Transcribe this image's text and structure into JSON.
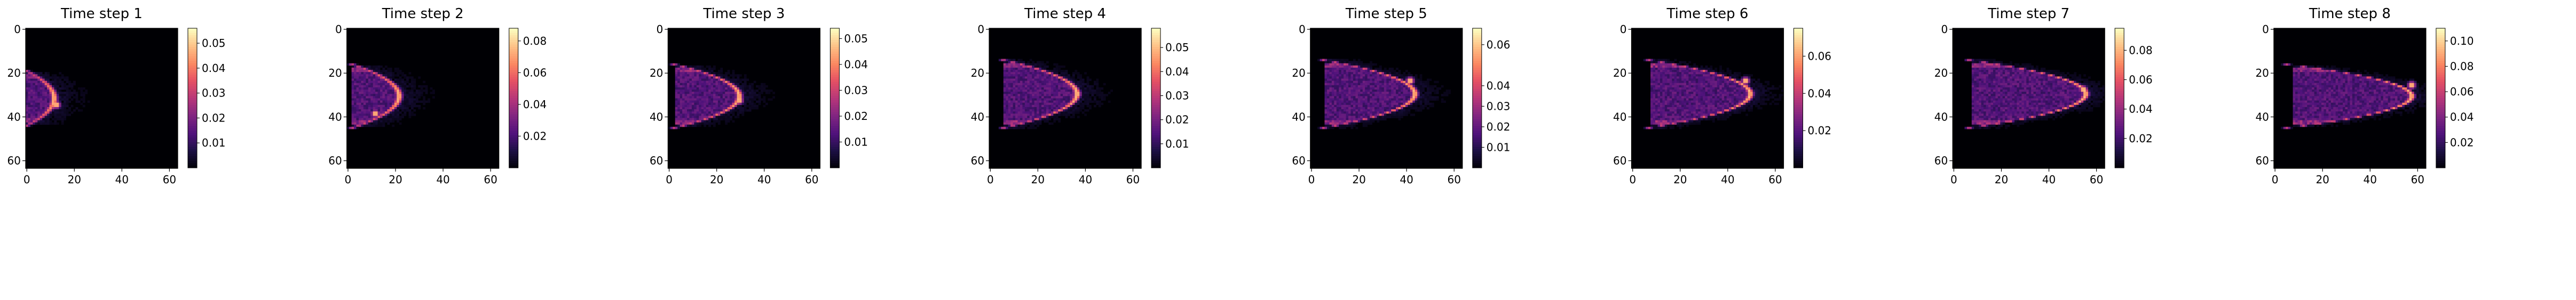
{
  "figure": {
    "colormap": "magma",
    "background": "#ffffff"
  },
  "chart_data": [
    {
      "type": "heatmap",
      "title": "Time step 1",
      "xticks": [
        0,
        20,
        40,
        60
      ],
      "yticks": [
        0,
        20,
        40,
        60
      ],
      "xlim": [
        0,
        64
      ],
      "ylim": [
        64,
        0
      ],
      "colorbar": {
        "ticks": [
          0.01,
          0.02,
          0.03,
          0.04,
          0.05
        ],
        "range": [
          0,
          0.056
        ]
      },
      "features": {
        "front_x": 12,
        "cy": 32,
        "half_height": 10,
        "tail_x": 2,
        "peak": 0.056,
        "hot_spot": [
          13,
          35
        ]
      }
    },
    {
      "type": "heatmap",
      "title": "Time step 2",
      "xticks": [
        0,
        20,
        40,
        60
      ],
      "yticks": [
        0,
        20,
        40,
        60
      ],
      "xlim": [
        0,
        64
      ],
      "ylim": [
        64,
        0
      ],
      "colorbar": {
        "ticks": [
          0.02,
          0.04,
          0.06,
          0.08
        ],
        "range": [
          0,
          0.088
        ]
      },
      "features": {
        "front_x": 22,
        "cy": 31,
        "half_height": 12,
        "tail_x": 4,
        "peak": 0.088,
        "hot_spot": [
          12,
          39
        ]
      }
    },
    {
      "type": "heatmap",
      "title": "Time step 3",
      "xticks": [
        0,
        20,
        40,
        60
      ],
      "yticks": [
        0,
        20,
        40,
        60
      ],
      "xlim": [
        0,
        64
      ],
      "ylim": [
        64,
        0
      ],
      "colorbar": {
        "ticks": [
          0.01,
          0.02,
          0.03,
          0.04,
          0.05
        ],
        "range": [
          0,
          0.054
        ]
      },
      "features": {
        "front_x": 30,
        "cy": 31,
        "half_height": 12,
        "tail_x": 5,
        "peak": 0.054,
        "hot_spot": [
          30,
          33
        ]
      }
    },
    {
      "type": "heatmap",
      "title": "Time step 4",
      "xticks": [
        0,
        20,
        40,
        60
      ],
      "yticks": [
        0,
        20,
        40,
        60
      ],
      "xlim": [
        0,
        64
      ],
      "ylim": [
        64,
        0
      ],
      "colorbar": {
        "ticks": [
          0.01,
          0.02,
          0.03,
          0.04,
          0.05
        ],
        "range": [
          0,
          0.058
        ]
      },
      "features": {
        "front_x": 37,
        "cy": 30,
        "half_height": 13,
        "tail_x": 8,
        "peak": 0.058,
        "hot_spot": [
          37,
          30
        ]
      }
    },
    {
      "type": "heatmap",
      "title": "Time step 5",
      "xticks": [
        0,
        20,
        40,
        60
      ],
      "yticks": [
        0,
        20,
        40,
        60
      ],
      "xlim": [
        0,
        64
      ],
      "ylim": [
        64,
        0
      ],
      "colorbar": {
        "ticks": [
          0.01,
          0.02,
          0.03,
          0.04,
          0.06
        ],
        "range": [
          0,
          0.068
        ]
      },
      "features": {
        "front_x": 44,
        "cy": 30,
        "half_height": 13,
        "tail_x": 8,
        "peak": 0.068,
        "hot_spot": [
          42,
          24
        ]
      }
    },
    {
      "type": "heatmap",
      "title": "Time step 6",
      "xticks": [
        0,
        20,
        40,
        60
      ],
      "yticks": [
        0,
        20,
        40,
        60
      ],
      "xlim": [
        0,
        64
      ],
      "ylim": [
        64,
        0
      ],
      "colorbar": {
        "ticks": [
          0.02,
          0.04,
          0.06
        ],
        "range": [
          0,
          0.075
        ]
      },
      "features": {
        "front_x": 50,
        "cy": 30,
        "half_height": 13,
        "tail_x": 10,
        "peak": 0.075,
        "hot_spot": [
          48,
          24
        ]
      }
    },
    {
      "type": "heatmap",
      "title": "Time step 7",
      "xticks": [
        0,
        20,
        40,
        60
      ],
      "yticks": [
        0,
        20,
        40,
        60
      ],
      "xlim": [
        0,
        64
      ],
      "ylim": [
        64,
        0
      ],
      "colorbar": {
        "ticks": [
          0.02,
          0.04,
          0.06,
          0.08
        ],
        "range": [
          0,
          0.095
        ]
      },
      "features": {
        "front_x": 56,
        "cy": 30,
        "half_height": 13,
        "tail_x": 10,
        "peak": 0.095,
        "hot_spot": [
          55,
          28
        ]
      }
    },
    {
      "type": "heatmap",
      "title": "Time step 8",
      "xticks": [
        0,
        20,
        40,
        60
      ],
      "yticks": [
        0,
        20,
        40,
        60
      ],
      "xlim": [
        0,
        64
      ],
      "ylim": [
        64,
        0
      ],
      "colorbar": {
        "ticks": [
          0.02,
          0.04,
          0.06,
          0.08,
          0.1
        ],
        "range": [
          0,
          0.11
        ]
      },
      "features": {
        "front_x": 58,
        "cy": 31,
        "half_height": 12,
        "tail_x": 10,
        "peak": 0.11,
        "hot_spot": [
          58,
          26
        ]
      }
    }
  ]
}
